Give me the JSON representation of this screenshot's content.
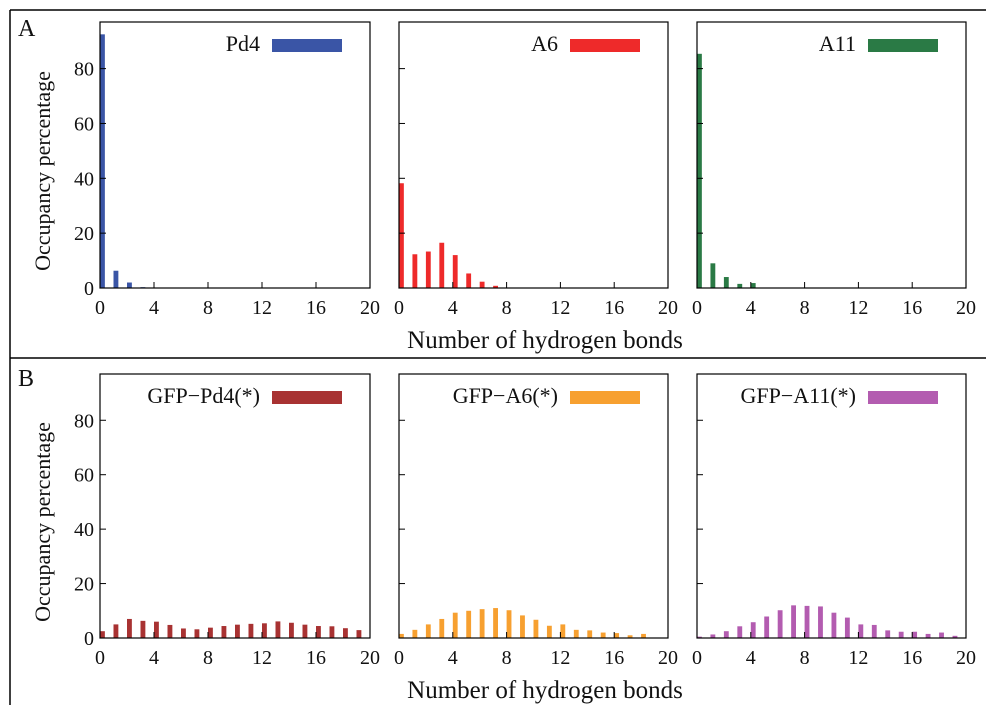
{
  "figure": {
    "x_label": "Number of hydrogen bonds",
    "y_label": "Occupancy percentage"
  },
  "chart_data": [
    {
      "type": "bar",
      "panel": "A",
      "legend": "Pd4",
      "color": "#3a55a6",
      "x": [
        0,
        1,
        2,
        3
      ],
      "values": [
        92.5,
        6.3,
        2.0,
        0.3
      ],
      "xlim": [
        0,
        20
      ],
      "ylim": [
        0,
        97
      ],
      "xticks": [
        0,
        4,
        8,
        12,
        16,
        20
      ],
      "yticks": [
        0,
        20,
        40,
        60,
        80
      ],
      "show_yticks": true,
      "legend_position": "top-right",
      "grid": false
    },
    {
      "type": "bar",
      "panel": "A",
      "legend": "A6",
      "color": "#ee2a2a",
      "x": [
        0,
        1,
        2,
        3,
        4,
        5,
        6,
        7
      ],
      "values": [
        38.2,
        12.3,
        13.3,
        16.5,
        12.0,
        5.3,
        2.3,
        0.8
      ],
      "xlim": [
        0,
        20
      ],
      "ylim": [
        0,
        97
      ],
      "xticks": [
        0,
        4,
        8,
        12,
        16,
        20
      ],
      "yticks": [
        0,
        20,
        40,
        60,
        80
      ],
      "show_yticks": false,
      "legend_position": "top-right",
      "grid": false
    },
    {
      "type": "bar",
      "panel": "A",
      "legend": "A11",
      "color": "#2a7a45",
      "x": [
        0,
        1,
        2,
        3,
        4
      ],
      "values": [
        85.4,
        9.0,
        4.0,
        1.5,
        1.8
      ],
      "xlim": [
        0,
        20
      ],
      "ylim": [
        0,
        97
      ],
      "xticks": [
        0,
        4,
        8,
        12,
        16,
        20
      ],
      "yticks": [
        0,
        20,
        40,
        60,
        80
      ],
      "show_yticks": false,
      "legend_position": "top-right",
      "grid": false
    },
    {
      "type": "bar",
      "panel": "B",
      "legend": "GFP−Pd4(*)",
      "color": "#a83232",
      "x": [
        0,
        1,
        2,
        3,
        4,
        5,
        6,
        7,
        8,
        9,
        10,
        11,
        12,
        13,
        14,
        15,
        16,
        17,
        18,
        19
      ],
      "values": [
        2.5,
        5.0,
        7.0,
        6.3,
        6.0,
        4.8,
        3.5,
        3.2,
        3.8,
        4.4,
        4.9,
        5.2,
        5.4,
        6.1,
        5.6,
        4.9,
        4.4,
        4.3,
        3.6,
        2.9
      ],
      "xlim": [
        0,
        20
      ],
      "ylim": [
        0,
        97
      ],
      "xticks": [
        0,
        4,
        8,
        12,
        16,
        20
      ],
      "yticks": [
        0,
        20,
        40,
        60,
        80
      ],
      "show_yticks": true,
      "legend_position": "top-right",
      "grid": false
    },
    {
      "type": "bar",
      "panel": "B",
      "legend": "GFP−A6(*)",
      "color": "#f7a030",
      "x": [
        0,
        1,
        2,
        3,
        4,
        5,
        6,
        7,
        8,
        9,
        10,
        11,
        12,
        13,
        14,
        15,
        16,
        17,
        18
      ],
      "values": [
        1.5,
        3.0,
        5.0,
        7.0,
        9.3,
        10.0,
        10.6,
        11.0,
        10.2,
        8.3,
        6.7,
        4.5,
        5.0,
        3.0,
        2.8,
        2.0,
        1.8,
        1.0,
        1.5
      ],
      "xlim": [
        0,
        20
      ],
      "ylim": [
        0,
        97
      ],
      "xticks": [
        0,
        4,
        8,
        12,
        16,
        20
      ],
      "yticks": [
        0,
        20,
        40,
        60,
        80
      ],
      "show_yticks": false,
      "legend_position": "top-right",
      "grid": false
    },
    {
      "type": "bar",
      "panel": "B",
      "legend": "GFP−A11(*)",
      "color": "#b35cb0",
      "x": [
        0,
        1,
        2,
        3,
        4,
        5,
        6,
        7,
        8,
        9,
        10,
        11,
        12,
        13,
        14,
        15,
        16,
        17,
        18,
        19
      ],
      "values": [
        0.5,
        1.3,
        2.5,
        4.3,
        5.8,
        7.9,
        10.2,
        12.0,
        11.8,
        11.6,
        9.3,
        7.5,
        5.0,
        4.8,
        2.8,
        2.3,
        2.3,
        1.5,
        2.0,
        0.8
      ],
      "xlim": [
        0,
        20
      ],
      "ylim": [
        0,
        97
      ],
      "xticks": [
        0,
        4,
        8,
        12,
        16,
        20
      ],
      "yticks": [
        0,
        20,
        40,
        60,
        80
      ],
      "show_yticks": false,
      "legend_position": "top-right",
      "grid": false
    }
  ]
}
